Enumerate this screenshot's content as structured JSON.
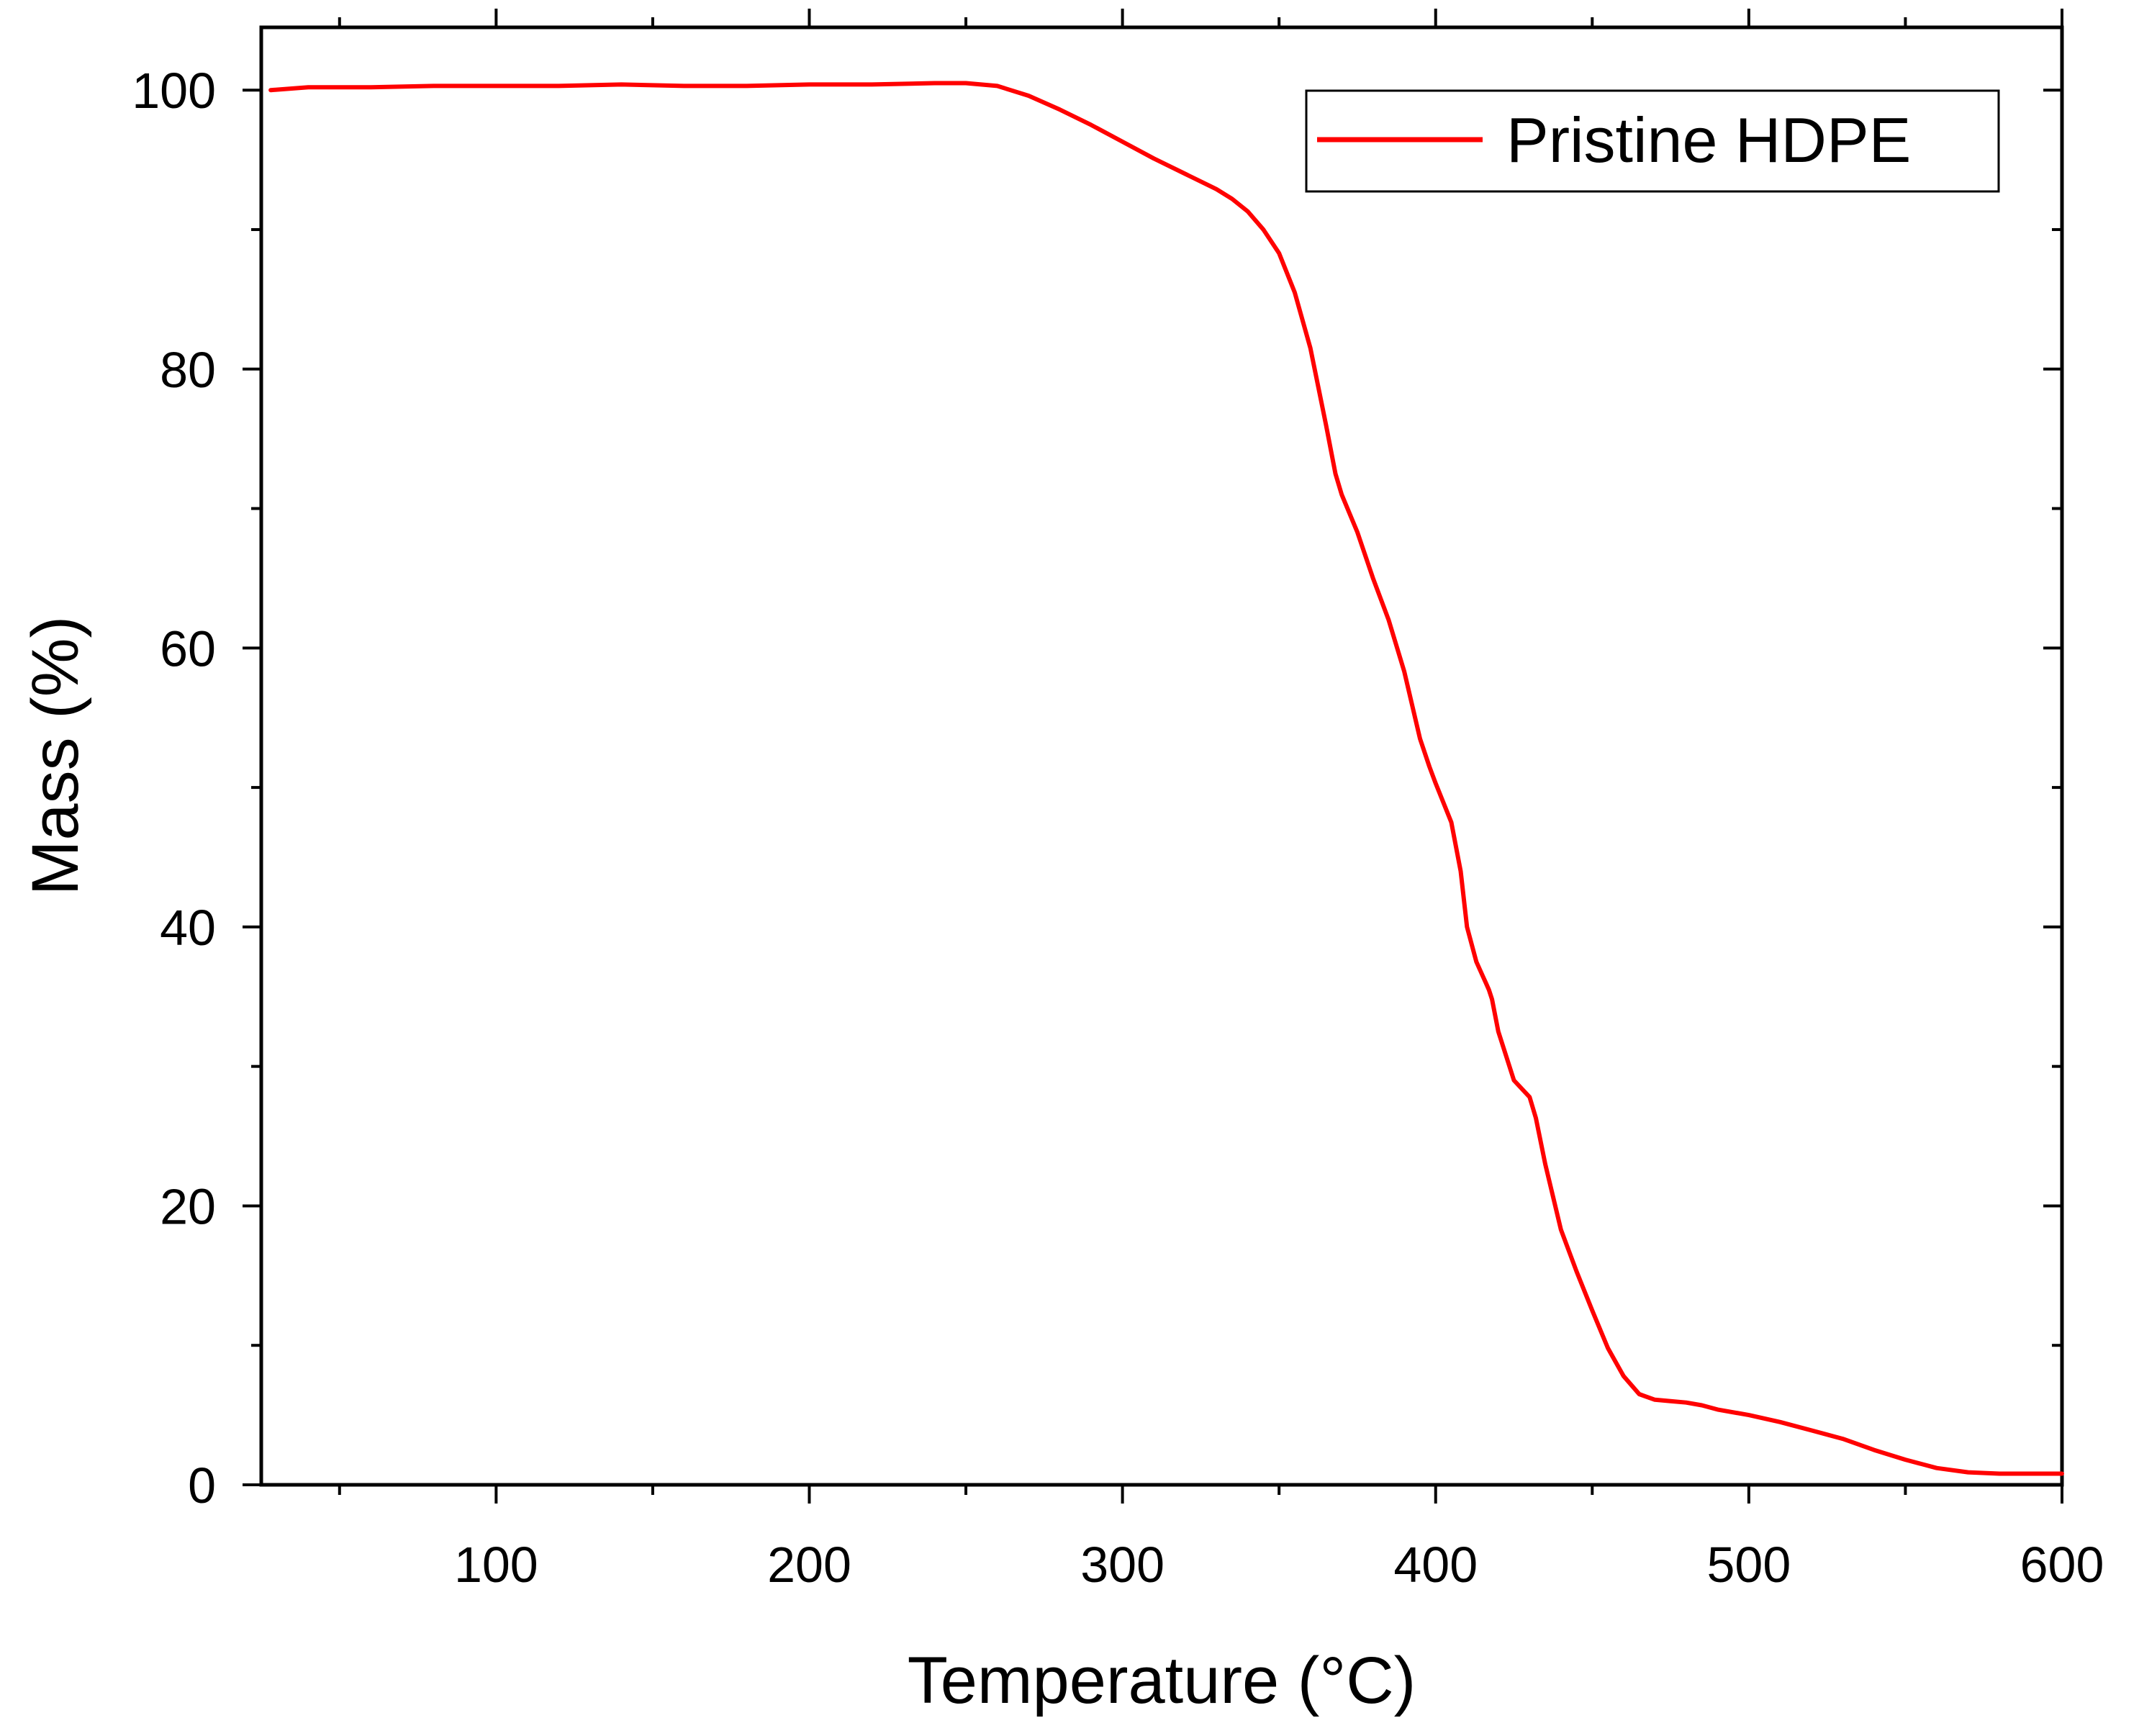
{
  "chart_data": {
    "type": "line",
    "title": "",
    "xlabel": "Temperature (°C)",
    "ylabel": "Mass (%)",
    "xlim": [
      25,
      600
    ],
    "ylim": [
      0,
      104.5
    ],
    "x_major_ticks": [
      100,
      200,
      300,
      400,
      500,
      600
    ],
    "x_minor_ticks": [
      50,
      150,
      250,
      350,
      450,
      550
    ],
    "y_major_ticks": [
      0,
      20,
      40,
      60,
      80,
      100
    ],
    "y_minor_ticks": [
      10,
      30,
      50,
      70,
      90
    ],
    "x_tick_labels": [
      "100",
      "200",
      "300",
      "400",
      "500",
      "600"
    ],
    "y_tick_labels": [
      "0",
      "20",
      "40",
      "60",
      "80",
      "100"
    ],
    "grid": false,
    "legend": {
      "position": "top-right",
      "entries": [
        "Pristine HDPE"
      ]
    },
    "series": [
      {
        "name": "Pristine HDPE",
        "color": "#ff0000",
        "x": [
          28,
          40,
          60,
          80,
          100,
          120,
          140,
          160,
          180,
          200,
          220,
          240,
          250,
          260,
          270,
          280,
          290,
          300,
          310,
          320,
          330,
          335,
          340,
          345,
          350,
          355,
          360,
          365,
          368,
          370,
          375,
          380,
          385,
          390,
          395,
          398,
          400,
          405,
          408,
          410,
          413,
          415,
          416,
          417,
          418,
          420,
          425,
          430,
          432,
          435,
          440,
          445,
          450,
          455,
          460,
          465,
          470,
          475,
          480,
          485,
          490,
          500,
          510,
          520,
          530,
          540,
          550,
          560,
          570,
          580,
          590,
          600
        ],
        "y": [
          100.0,
          100.2,
          100.2,
          100.3,
          100.3,
          100.3,
          100.4,
          100.3,
          100.3,
          100.4,
          100.4,
          100.5,
          100.5,
          100.3,
          99.6,
          98.6,
          97.5,
          96.3,
          95.1,
          94.0,
          92.9,
          92.2,
          91.3,
          90.0,
          88.3,
          85.5,
          81.5,
          76.0,
          72.5,
          71.0,
          68.3,
          65.0,
          62.0,
          58.3,
          53.5,
          51.5,
          50.3,
          47.5,
          44.0,
          40.0,
          37.5,
          36.5,
          36.0,
          35.5,
          34.8,
          32.5,
          29.0,
          27.8,
          26.3,
          23.0,
          18.3,
          15.3,
          12.5,
          9.8,
          7.8,
          6.5,
          6.1,
          6.0,
          5.9,
          5.7,
          5.4,
          5.0,
          4.5,
          3.9,
          3.3,
          2.5,
          1.8,
          1.2,
          0.9,
          0.8,
          0.8,
          0.8
        ]
      }
    ]
  }
}
